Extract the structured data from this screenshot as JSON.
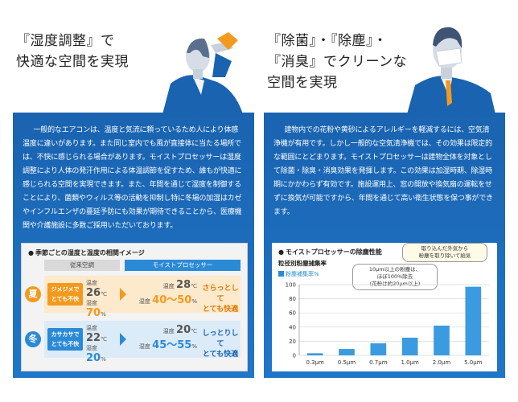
{
  "left": {
    "headline": [
      "『湿度調整』で",
      "快適な空間を実現"
    ],
    "paragraph": "一般的なエアコンは、温度と気流に頼っているため人により体感温度に違いがあります。また同じ室内でも風が直接体に当たる場所では、不快に感じられる場合があります。モイストプロセッサーは湿度調整により人体の発汗作用による体温調節を促すため、誰もが快適に感じられる空間を実現できます。また、年間を通じて湿度を制御することにより、菌類やウィルス等の活動を抑制し特に冬場の加湿はカゼやインフルエンザの蔓延予防にも効果が期待できることから、医療機関や介護施設に多数ご採用いただいております。",
    "table": {
      "title": "季節ごとの湿度と温度の相関イメージ",
      "col_a": "従来空調",
      "col_b": "モイストプロセッサー",
      "temp_label": "温度",
      "hum_label": "湿度",
      "rows": [
        {
          "season": "夏",
          "bad": "ジメジメで\nとても不快",
          "temp_a": "26",
          "hum_a": "70",
          "temp_b": "28",
          "hum_b": "40〜50",
          "good": "さらっとして\nとても快適"
        },
        {
          "season": "冬",
          "bad": "カサカサで\nとても不快",
          "temp_a": "22",
          "hum_a": "20",
          "temp_b": "20",
          "hum_b": "45〜55",
          "good": "しっとりして\nとても快適"
        }
      ],
      "temp_unit": "℃",
      "hum_unit": "%"
    }
  },
  "right": {
    "headline": [
      "『除菌』・『除塵』・",
      "『消臭』でクリーンな",
      "空間を実現"
    ],
    "paragraph": "建物内での花粉や黄砂によるアレルギーを軽減するには、空気清浄機が有用です。しかし一般的な空気清浄機では、その効果は限定的な範囲にとどまります。モイストプロセッサーは建物全体を対象として除菌・除臭・消臭効果を発揮します。この効果は加湿時期、除湿時期にかかわらず有効です。施設運用上、窓の開放や換気扇の運転をせずに換気が可能ですから、年間を通じて高い衛生状態を保つ事ができます。",
    "chart_title": "モイストプロセッサーの除塵性能",
    "chart_subtitle": "粒径別粉塵捕集率",
    "callout_top": "取り込んだ外気から\n粉塵を取り除いて給気",
    "callout_bottom": "10μm以上の粉塵は、\nほぼ100%除去\n(花粉は約20μm以上)"
  },
  "chart_data": {
    "type": "bar",
    "title": "粒径別粉塵捕集率",
    "categories": [
      "0.3μm",
      "0.5μm",
      "0.7μm",
      "1.0μm",
      "2.0μm",
      "5.0μm"
    ],
    "series": [
      {
        "name": "粉塵補集率%",
        "values": [
          3,
          9,
          17,
          25,
          42,
          97
        ]
      }
    ],
    "ylim": [
      0,
      100
    ],
    "yticks": [
      0,
      20,
      40,
      60,
      80,
      100
    ],
    "grid": true,
    "legend": "top-left"
  },
  "colors": {
    "panel": "#1a63b0",
    "accent": "#2b8ad6",
    "orange": "#f39a1e",
    "bar": "#3a9be0"
  }
}
